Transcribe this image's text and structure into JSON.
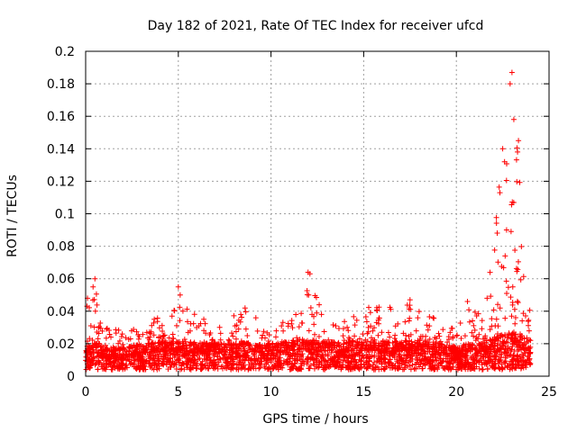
{
  "chart_data": {
    "type": "scatter",
    "title": "Day 182 of 2021, Rate Of TEC Index for receiver ufcd",
    "xlabel": "GPS time / hours",
    "ylabel": "ROTI / TECUs",
    "xlim": [
      0,
      25
    ],
    "ylim": [
      0,
      0.2
    ],
    "xticks": [
      0,
      5,
      10,
      15,
      20,
      25
    ],
    "yticks": [
      0,
      0.02,
      0.04,
      0.06,
      0.08,
      0.1,
      0.12,
      0.14,
      0.16,
      0.18,
      0.2
    ],
    "xtick_labels": [
      "0",
      "5",
      "10",
      "15",
      "20",
      "25"
    ],
    "ytick_labels": [
      "0",
      "0.02",
      "0.04",
      "0.06",
      "0.08",
      "0.1",
      "0.12",
      "0.14",
      "0.16",
      "0.18",
      "0.2"
    ],
    "grid": true,
    "marker": "+",
    "color": "#ff0000",
    "series": [
      {
        "name": "ROTI",
        "envelope": [
          {
            "x": 0.0,
            "base": 0.012,
            "peak": 0.045
          },
          {
            "x": 0.3,
            "base": 0.014,
            "peak": 0.05
          },
          {
            "x": 0.5,
            "base": 0.015,
            "peak": 0.06
          },
          {
            "x": 1.0,
            "base": 0.012,
            "peak": 0.03
          },
          {
            "x": 2.0,
            "base": 0.012,
            "peak": 0.028
          },
          {
            "x": 3.0,
            "base": 0.014,
            "peak": 0.03
          },
          {
            "x": 4.0,
            "base": 0.016,
            "peak": 0.038
          },
          {
            "x": 5.0,
            "base": 0.016,
            "peak": 0.055
          },
          {
            "x": 5.6,
            "base": 0.015,
            "peak": 0.04
          },
          {
            "x": 7.0,
            "base": 0.014,
            "peak": 0.033
          },
          {
            "x": 8.5,
            "base": 0.015,
            "peak": 0.042
          },
          {
            "x": 10.0,
            "base": 0.014,
            "peak": 0.03
          },
          {
            "x": 11.0,
            "base": 0.016,
            "peak": 0.035
          },
          {
            "x": 12.0,
            "base": 0.017,
            "peak": 0.064
          },
          {
            "x": 12.7,
            "base": 0.016,
            "peak": 0.043
          },
          {
            "x": 13.5,
            "base": 0.015,
            "peak": 0.038
          },
          {
            "x": 15.0,
            "base": 0.016,
            "peak": 0.042
          },
          {
            "x": 16.0,
            "base": 0.015,
            "peak": 0.045
          },
          {
            "x": 17.0,
            "base": 0.016,
            "peak": 0.04
          },
          {
            "x": 17.5,
            "base": 0.016,
            "peak": 0.047
          },
          {
            "x": 19.0,
            "base": 0.015,
            "peak": 0.036
          },
          {
            "x": 20.0,
            "base": 0.012,
            "peak": 0.03
          },
          {
            "x": 20.6,
            "base": 0.014,
            "peak": 0.046
          },
          {
            "x": 21.5,
            "base": 0.015,
            "peak": 0.04
          },
          {
            "x": 22.0,
            "base": 0.018,
            "peak": 0.08
          },
          {
            "x": 22.5,
            "base": 0.02,
            "peak": 0.14
          },
          {
            "x": 23.0,
            "base": 0.022,
            "peak": 0.187
          },
          {
            "x": 23.3,
            "base": 0.02,
            "peak": 0.14
          },
          {
            "x": 23.6,
            "base": 0.018,
            "peak": 0.09
          },
          {
            "x": 24.0,
            "base": 0.014,
            "peak": 0.04
          }
        ],
        "spikes": [
          {
            "x": 0.1,
            "y": 0.048
          },
          {
            "x": 0.4,
            "y": 0.055
          },
          {
            "x": 0.5,
            "y": 0.06
          },
          {
            "x": 5.0,
            "y": 0.055
          },
          {
            "x": 5.1,
            "y": 0.05
          },
          {
            "x": 8.6,
            "y": 0.042
          },
          {
            "x": 12.0,
            "y": 0.064
          },
          {
            "x": 12.1,
            "y": 0.063
          },
          {
            "x": 12.6,
            "y": 0.044
          },
          {
            "x": 17.5,
            "y": 0.047
          },
          {
            "x": 20.6,
            "y": 0.046
          },
          {
            "x": 22.5,
            "y": 0.14
          },
          {
            "x": 22.6,
            "y": 0.132
          },
          {
            "x": 22.9,
            "y": 0.18
          },
          {
            "x": 23.0,
            "y": 0.187
          },
          {
            "x": 23.1,
            "y": 0.158
          },
          {
            "x": 23.3,
            "y": 0.138
          },
          {
            "x": 23.35,
            "y": 0.145
          }
        ]
      }
    ]
  }
}
